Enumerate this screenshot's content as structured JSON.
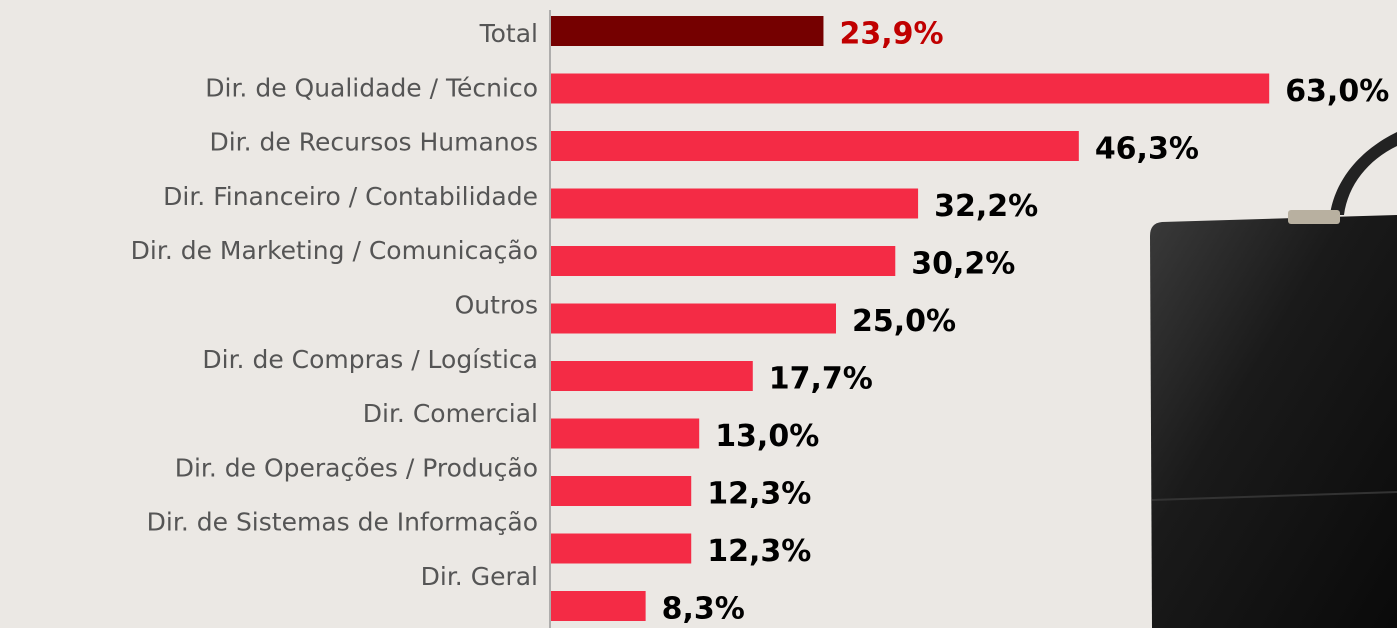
{
  "chart_data": {
    "type": "bar",
    "orientation": "horizontal",
    "categories": [
      "Total",
      "Dir. de Qualidade / Técnico",
      "Dir. de Recursos Humanos",
      "Dir. Financeiro / Contabilidade",
      "Dir. de Marketing / Comunicação",
      "Outros",
      "Dir. de Compras / Logística",
      "Dir. Comercial",
      "Dir. de Operações / Produção",
      "Dir. de Sistemas de Informação",
      "Dir. Geral"
    ],
    "values": [
      23.9,
      63.0,
      46.3,
      32.2,
      30.2,
      25.0,
      17.7,
      13.0,
      12.3,
      12.3,
      8.3
    ],
    "value_labels": [
      "23,9%",
      "63,0%",
      "46,3%",
      "32,2%",
      "30,2%",
      "25,0%",
      "17,7%",
      "13,0%",
      "12,3%",
      "12,3%",
      "8,3%"
    ],
    "colors": [
      "#750000",
      "#f42b45",
      "#f42b45",
      "#f42b45",
      "#f42b45",
      "#f42b45",
      "#f42b45",
      "#f42b45",
      "#f42b45",
      "#f42b45",
      "#f42b45"
    ],
    "value_label_colors": [
      "#c00000",
      "#000000",
      "#000000",
      "#000000",
      "#000000",
      "#000000",
      "#000000",
      "#000000",
      "#000000",
      "#000000",
      "#000000"
    ]
  }
}
